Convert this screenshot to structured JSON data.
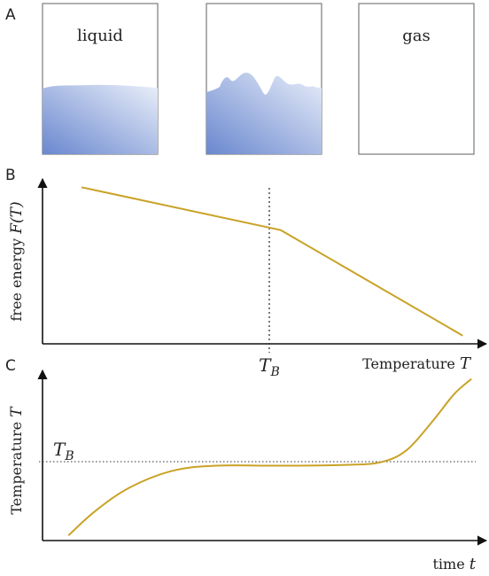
{
  "panels": {
    "a": {
      "letter": "A",
      "containers": [
        {
          "label": "liquid",
          "fill_level": 0.62,
          "surface": "calm"
        },
        {
          "label": "",
          "fill_level": 0.55,
          "surface": "turbulent"
        },
        {
          "label": "gas",
          "fill_level": 0.0,
          "surface": "none"
        }
      ],
      "liquid_color_dark": "#6a88cf",
      "liquid_color_light": "#e9eef9"
    },
    "b": {
      "letter": "B",
      "ylabel_text": "free energy ",
      "ylabel_symbol": "F(T)",
      "xlabel_text": "Temperature ",
      "xlabel_symbol": "T",
      "marker_symbol": "T",
      "marker_subscript": "B"
    },
    "c": {
      "letter": "C",
      "ylabel_text": "Temperature ",
      "ylabel_symbol": "T",
      "xlabel_text": "time ",
      "xlabel_symbol": "t",
      "level_symbol": "T",
      "level_subscript": "B"
    }
  },
  "colors": {
    "curve": "#c9a227",
    "axis": "#111111"
  },
  "chart_data": [
    {
      "type": "line",
      "title": "",
      "xlabel": "Temperature T",
      "ylabel": "free energy F(T)",
      "marker": {
        "x": 0.55,
        "label": "T_B",
        "style": "dotted"
      },
      "xlim": [
        0,
        1
      ],
      "ylim": [
        0,
        1
      ],
      "series": [
        {
          "x": [
            0.09,
            0.55,
            0.97
          ],
          "y": [
            0.95,
            0.69,
            0.05
          ]
        }
      ]
    },
    {
      "type": "line",
      "title": "",
      "xlabel": "time t",
      "ylabel": "Temperature T",
      "level": {
        "y": 0.44,
        "label": "T_B",
        "style": "dotted"
      },
      "xlim": [
        0,
        1
      ],
      "ylim": [
        0,
        1
      ],
      "series": [
        {
          "x": [
            0.06,
            0.12,
            0.2,
            0.3,
            0.4,
            0.55,
            0.7,
            0.78,
            0.84,
            0.9,
            0.95,
            0.99
          ],
          "y": [
            0.03,
            0.17,
            0.31,
            0.41,
            0.44,
            0.44,
            0.445,
            0.46,
            0.53,
            0.7,
            0.86,
            0.95
          ]
        }
      ]
    }
  ]
}
